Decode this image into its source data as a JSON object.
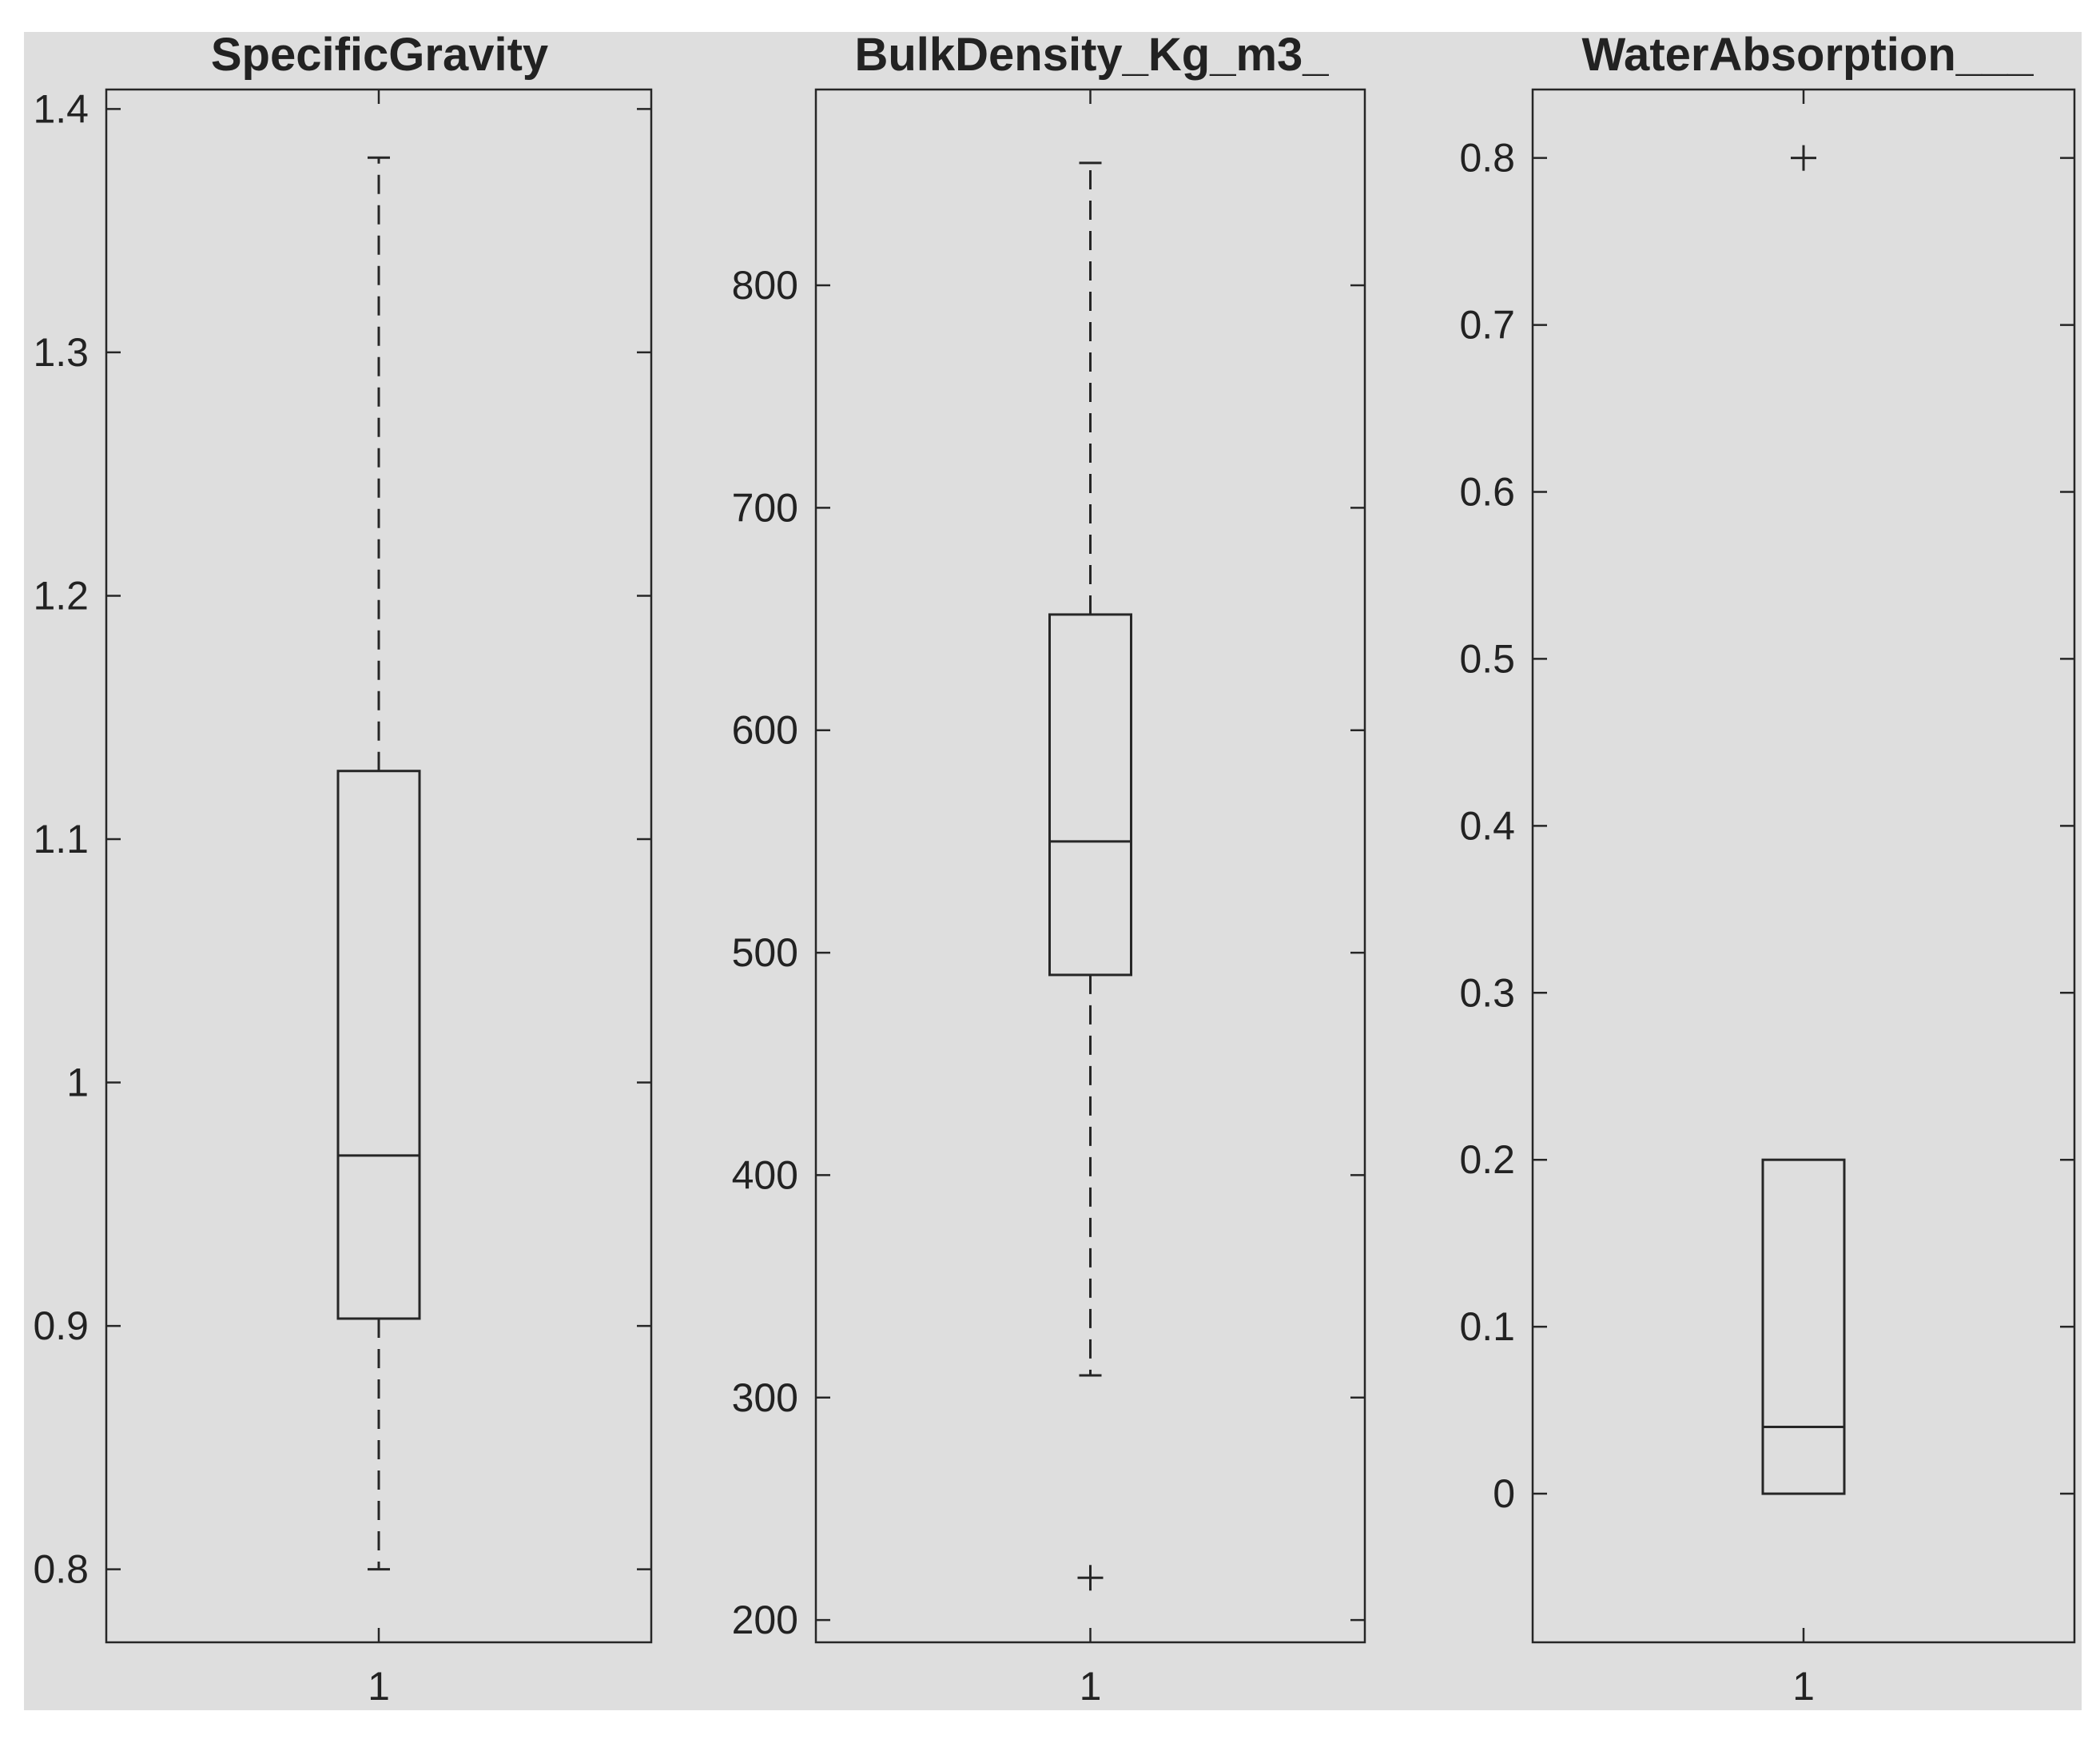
{
  "chart_data": [
    {
      "type": "box",
      "title": "SpecificGravity",
      "categories": [
        "1"
      ],
      "yticks": [
        0.8,
        0.9,
        1,
        1.1,
        1.2,
        1.3,
        1.4
      ],
      "ytick_labels": [
        "0.8",
        "0.9",
        "1",
        "1.1",
        "1.2",
        "1.3",
        "1.4"
      ],
      "ylim": [
        0.77,
        1.408
      ],
      "boxes": [
        {
          "category": "1",
          "whisker_low": 0.8,
          "q1": 0.903,
          "median": 0.97,
          "q3": 1.128,
          "whisker_high": 1.38,
          "outliers": []
        }
      ]
    },
    {
      "type": "box",
      "title": "BulkDensity_Kg_m3_",
      "categories": [
        "1"
      ],
      "yticks": [
        200,
        300,
        400,
        500,
        600,
        700,
        800
      ],
      "ytick_labels": [
        "200",
        "300",
        "400",
        "500",
        "600",
        "700",
        "800"
      ],
      "ylim": [
        190,
        888
      ],
      "boxes": [
        {
          "category": "1",
          "whisker_low": 310,
          "q1": 490,
          "median": 550,
          "q3": 652,
          "whisker_high": 855,
          "outliers": [
            219
          ]
        }
      ]
    },
    {
      "type": "box",
      "title": "WaterAbsorption___",
      "categories": [
        "1"
      ],
      "yticks": [
        0,
        0.1,
        0.2,
        0.3,
        0.4,
        0.5,
        0.6,
        0.7,
        0.8
      ],
      "ytick_labels": [
        "0",
        "0.1",
        "0.2",
        "0.3",
        "0.4",
        "0.5",
        "0.6",
        "0.7",
        "0.8"
      ],
      "ylim": [
        -0.089,
        0.841
      ],
      "boxes": [
        {
          "category": "1",
          "whisker_low": 0,
          "q1": 0,
          "median": 0.04,
          "q3": 0.2,
          "whisker_high": 0.2,
          "outliers": [
            0.8
          ]
        }
      ]
    }
  ],
  "colors": {
    "background": "#dedede",
    "page": "#ffffff",
    "line": "#262626",
    "text": "#222222"
  }
}
